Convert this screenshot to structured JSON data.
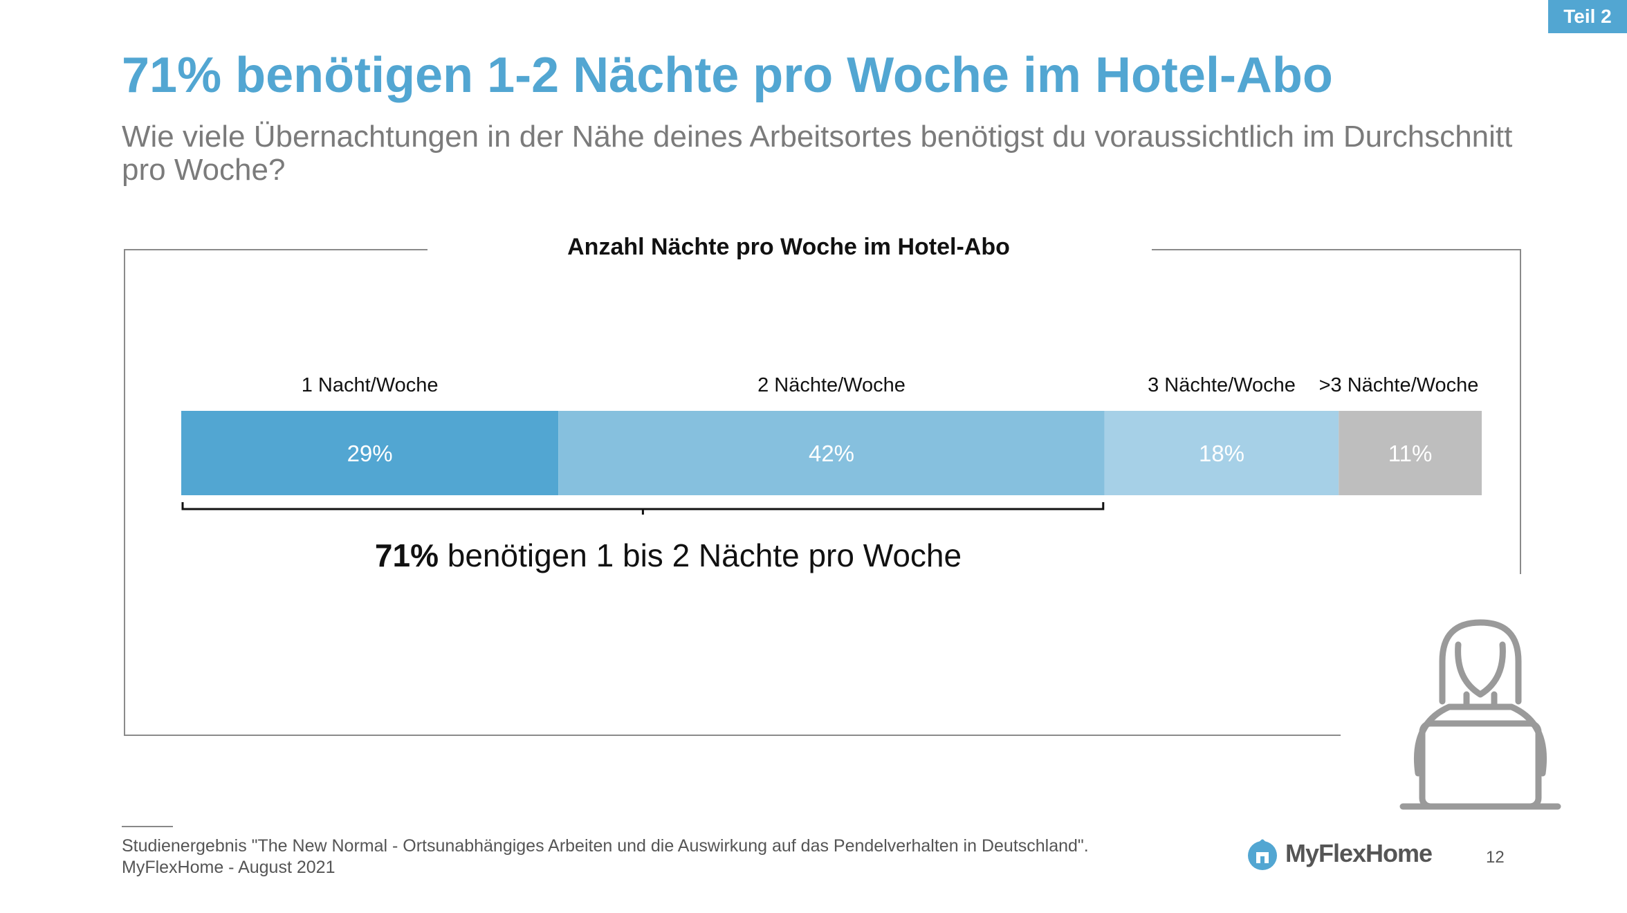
{
  "badge": "Teil 2",
  "title": "71% benötigen 1-2 Nächte pro Woche im Hotel-Abo",
  "subtitle": "Wie viele Übernachtungen in der Nähe deines Arbeitsortes benötigst du voraussichtlich im Durchschnitt pro Woche?",
  "chart_data": {
    "type": "bar",
    "orientation": "horizontal-stacked-100",
    "title": "Anzahl Nächte pro Woche im Hotel-Abo",
    "categories": [
      "1 Nacht/Woche",
      "2 Nächte/Woche",
      "3 Nächte/Woche",
      ">3 Nächte/Woche"
    ],
    "values": [
      29,
      42,
      18,
      11
    ],
    "value_labels": [
      "29%",
      "42%",
      "18%",
      "11%"
    ],
    "colors": [
      "#52a6d2",
      "#86c0de",
      "#a6d0e7",
      "#bebebe"
    ],
    "annotation": {
      "bold": "71%",
      "text": " benötigen 1 bis 2 Nächte pro Woche",
      "spans_categories": [
        0,
        1
      ]
    }
  },
  "footer": {
    "source_line1": "Studienergebnis \"The New Normal - Ortsunabhängiges Arbeiten und die Auswirkung auf das Pendelverhalten in Deutschland\".",
    "source_line2": "MyFlexHome - August 2021",
    "logo_text": "MyFlexHome",
    "page_number": "12"
  },
  "icons": {
    "logo": "house-icon",
    "illustration": "person-laptop-icon"
  }
}
